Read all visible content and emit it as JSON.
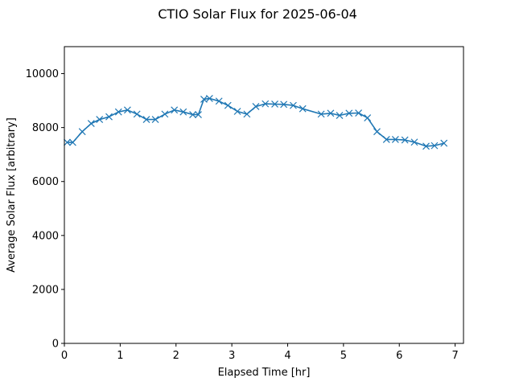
{
  "chart_data": {
    "type": "line",
    "title": "CTIO Solar Flux for 2025-06-04",
    "xlabel": "Elapsed Time [hr]",
    "ylabel": "Average Solar Flux [arbitrary]",
    "xlim": [
      0,
      7.15
    ],
    "ylim": [
      0,
      11000
    ],
    "xticks": [
      0,
      1,
      2,
      3,
      4,
      5,
      6,
      7
    ],
    "yticks": [
      0,
      2000,
      4000,
      6000,
      8000,
      10000
    ],
    "grid": false,
    "series": [
      {
        "marker": "x",
        "color": "#1f77b4",
        "x": [
          0.05,
          0.15,
          0.32,
          0.48,
          0.63,
          0.8,
          0.97,
          1.13,
          1.3,
          1.47,
          1.63,
          1.8,
          1.97,
          2.13,
          2.3,
          2.4,
          2.5,
          2.6,
          2.77,
          2.93,
          3.1,
          3.27,
          3.43,
          3.6,
          3.77,
          3.93,
          4.1,
          4.27,
          4.6,
          4.77,
          4.93,
          5.1,
          5.27,
          5.43,
          5.6,
          5.77,
          5.93,
          6.1,
          6.27,
          6.48,
          6.63,
          6.8
        ],
        "y": [
          7450,
          7450,
          7850,
          8150,
          8300,
          8400,
          8580,
          8650,
          8500,
          8300,
          8300,
          8500,
          8650,
          8580,
          8480,
          8480,
          9050,
          9080,
          8980,
          8820,
          8600,
          8500,
          8780,
          8880,
          8870,
          8860,
          8820,
          8700,
          8500,
          8530,
          8450,
          8530,
          8540,
          8360,
          7850,
          7560,
          7560,
          7540,
          7460,
          7310,
          7330,
          7420
        ]
      }
    ]
  }
}
